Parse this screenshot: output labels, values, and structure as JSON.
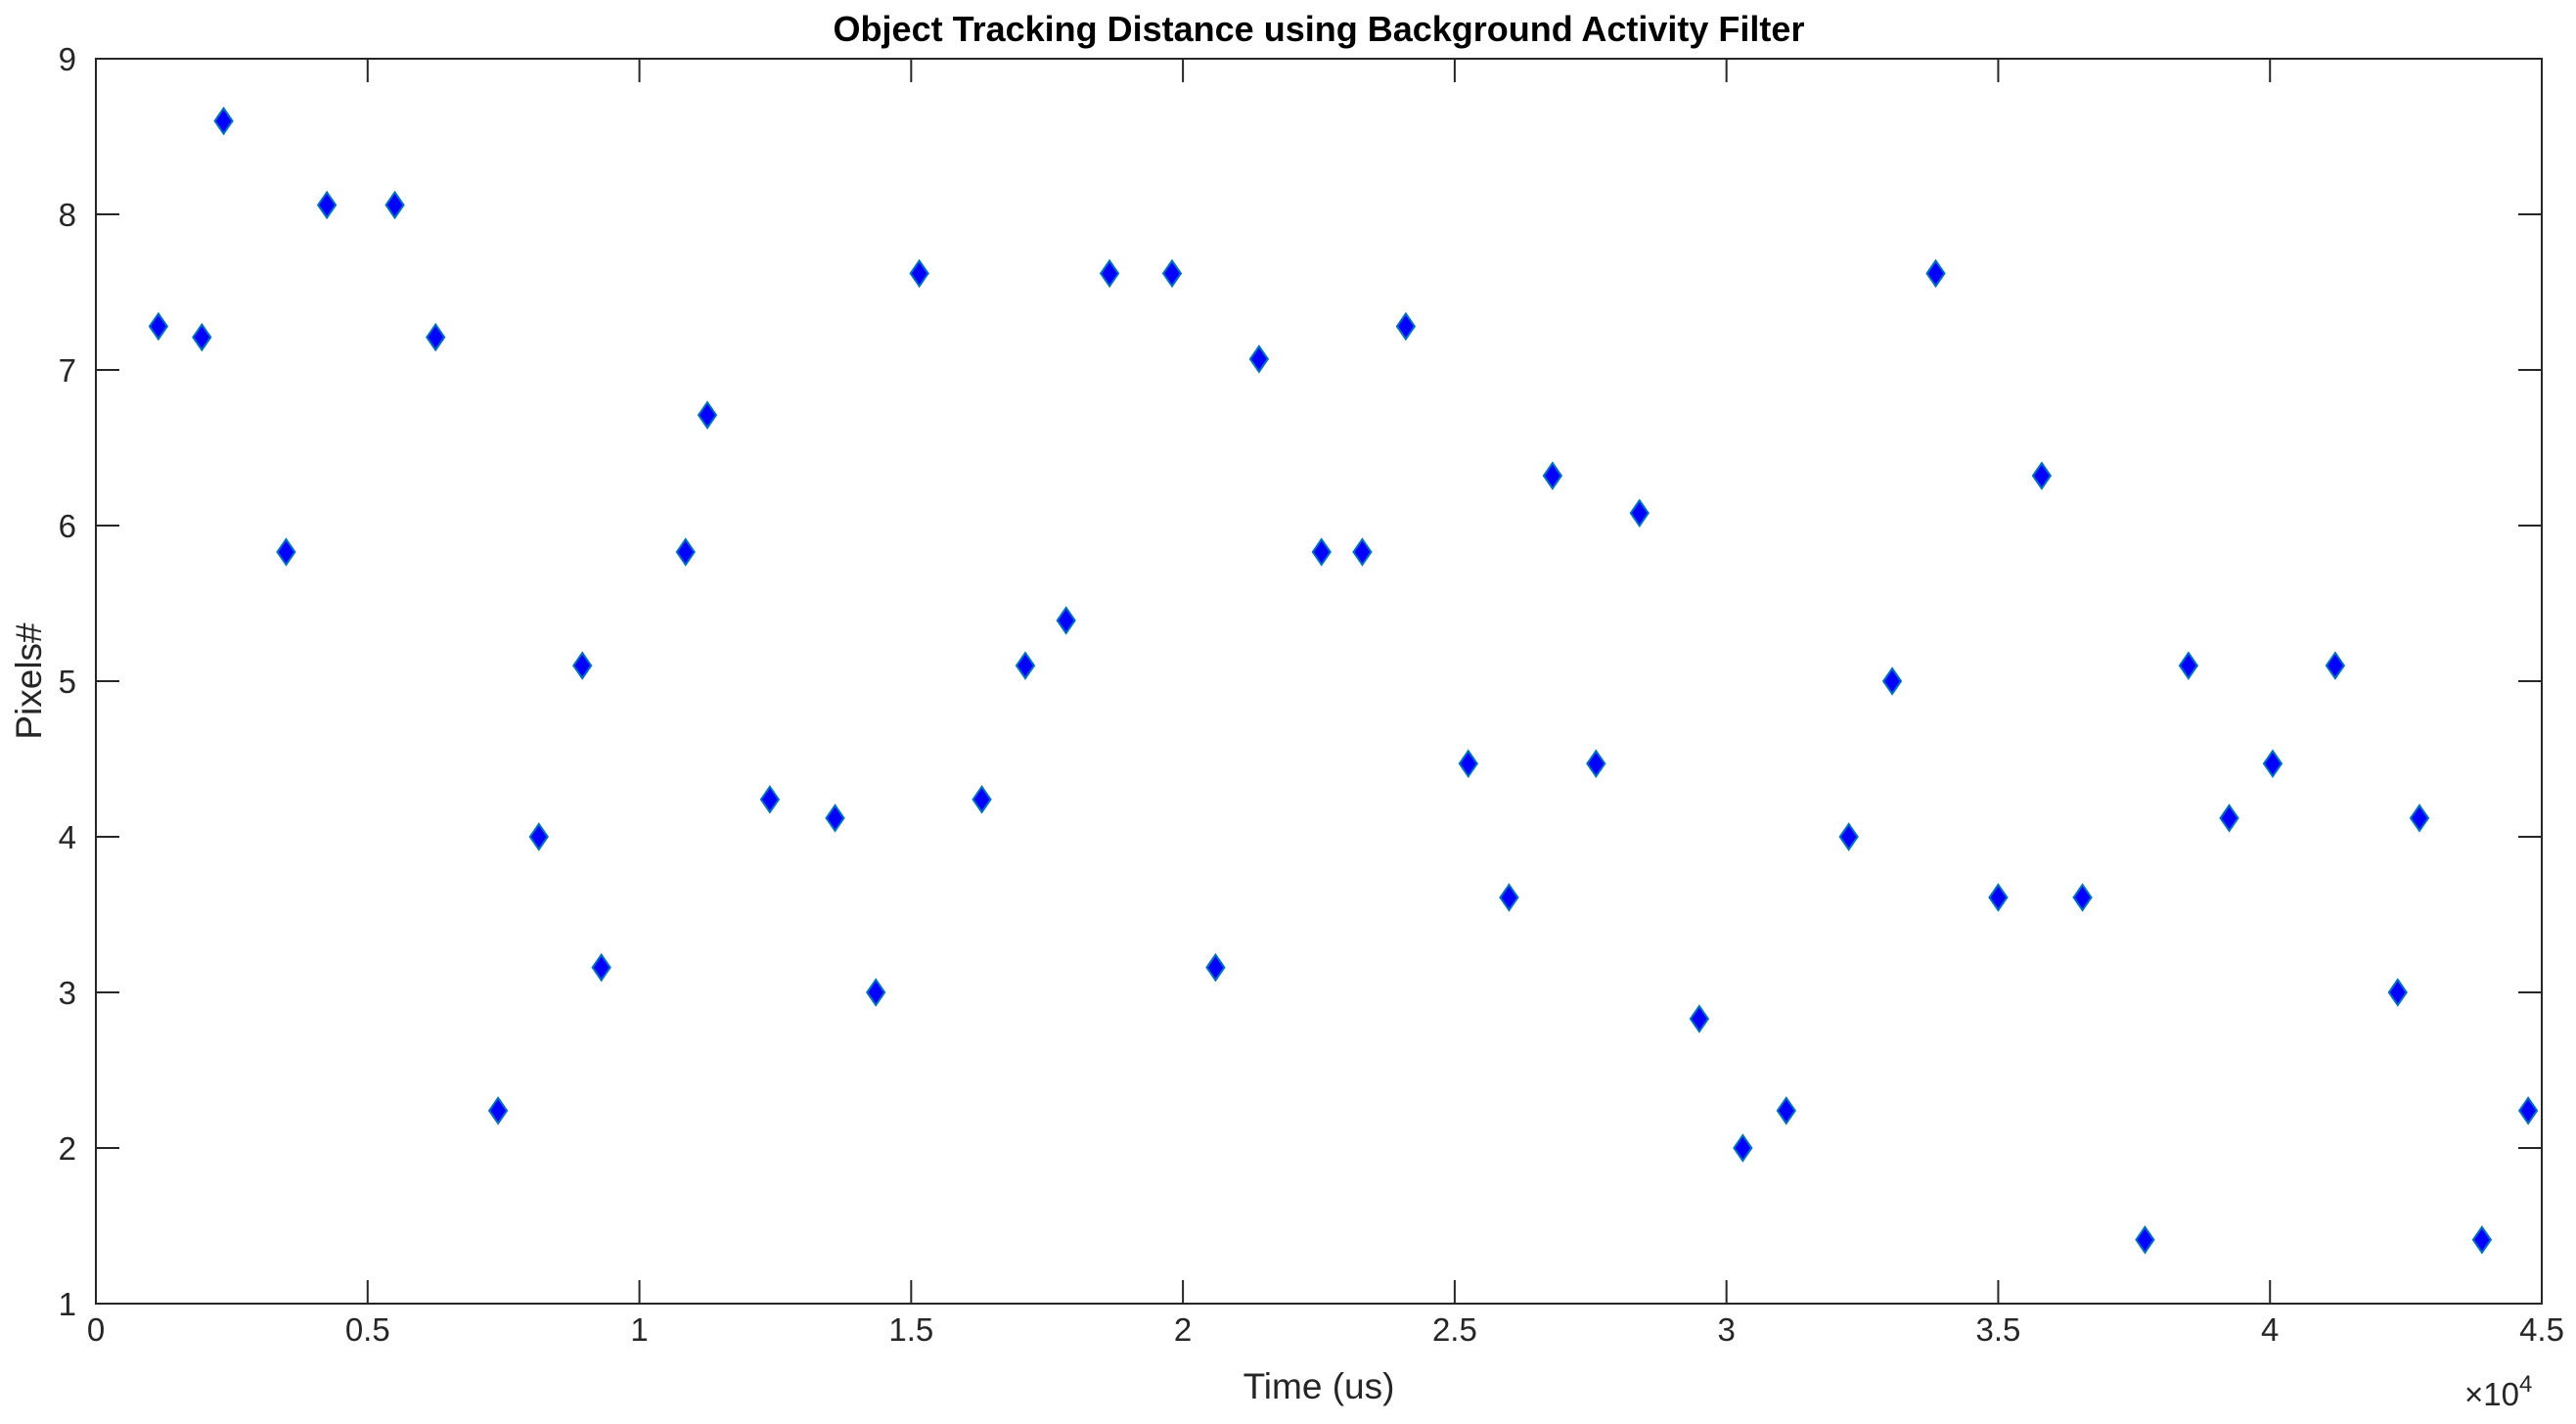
{
  "chart_data": {
    "type": "scatter",
    "title": "Object Tracking Distance using Background Activity Filter",
    "xlabel": "Time (us)",
    "ylabel": "Pixels#",
    "xlim": [
      0,
      45000
    ],
    "ylim": [
      1,
      9
    ],
    "x_ticks": [
      0,
      5000,
      10000,
      15000,
      20000,
      25000,
      30000,
      35000,
      40000,
      45000
    ],
    "x_tick_labels": [
      "0",
      "0.5",
      "1",
      "1.5",
      "2",
      "2.5",
      "3",
      "3.5",
      "4",
      "4.5"
    ],
    "y_ticks": [
      1,
      2,
      3,
      4,
      5,
      6,
      7,
      8,
      9
    ],
    "y_tick_labels": [
      "1",
      "2",
      "3",
      "4",
      "5",
      "6",
      "7",
      "8",
      "9"
    ],
    "x_multiplier_base": "×10",
    "x_multiplier_exp": "4",
    "grid": false,
    "marker": "diamond",
    "marker_face_color": "#0000ff",
    "marker_edge_color": "#0072bd",
    "series": [
      {
        "x": [
          1150,
          1950,
          2350,
          3500,
          4250,
          5500,
          6250,
          7400,
          8150,
          8950,
          9300,
          10850,
          11250,
          12400,
          13600,
          14350,
          15150,
          16300,
          17100,
          17850,
          18650,
          19800,
          20600,
          21400,
          22550,
          23300,
          24100,
          25250,
          26000,
          26800,
          27600,
          28400,
          29500,
          30300,
          31100,
          32250,
          33050,
          33850,
          35000,
          35800,
          36550,
          37700,
          38500,
          39250,
          40050,
          41200,
          42350,
          42750,
          43900,
          44750
        ],
        "y": [
          7.28,
          7.21,
          8.6,
          5.83,
          8.06,
          8.06,
          7.21,
          2.24,
          4.0,
          5.1,
          3.16,
          5.83,
          6.71,
          4.24,
          4.12,
          3.0,
          7.62,
          4.24,
          5.1,
          5.39,
          7.62,
          7.62,
          3.16,
          7.07,
          5.83,
          5.83,
          7.28,
          4.47,
          3.61,
          6.32,
          4.47,
          6.08,
          2.83,
          2.0,
          2.24,
          4.0,
          5.0,
          7.62,
          3.61,
          6.32,
          3.61,
          1.41,
          5.1,
          4.12,
          4.47,
          5.1,
          3.0,
          4.12,
          1.41,
          2.24
        ]
      }
    ]
  }
}
